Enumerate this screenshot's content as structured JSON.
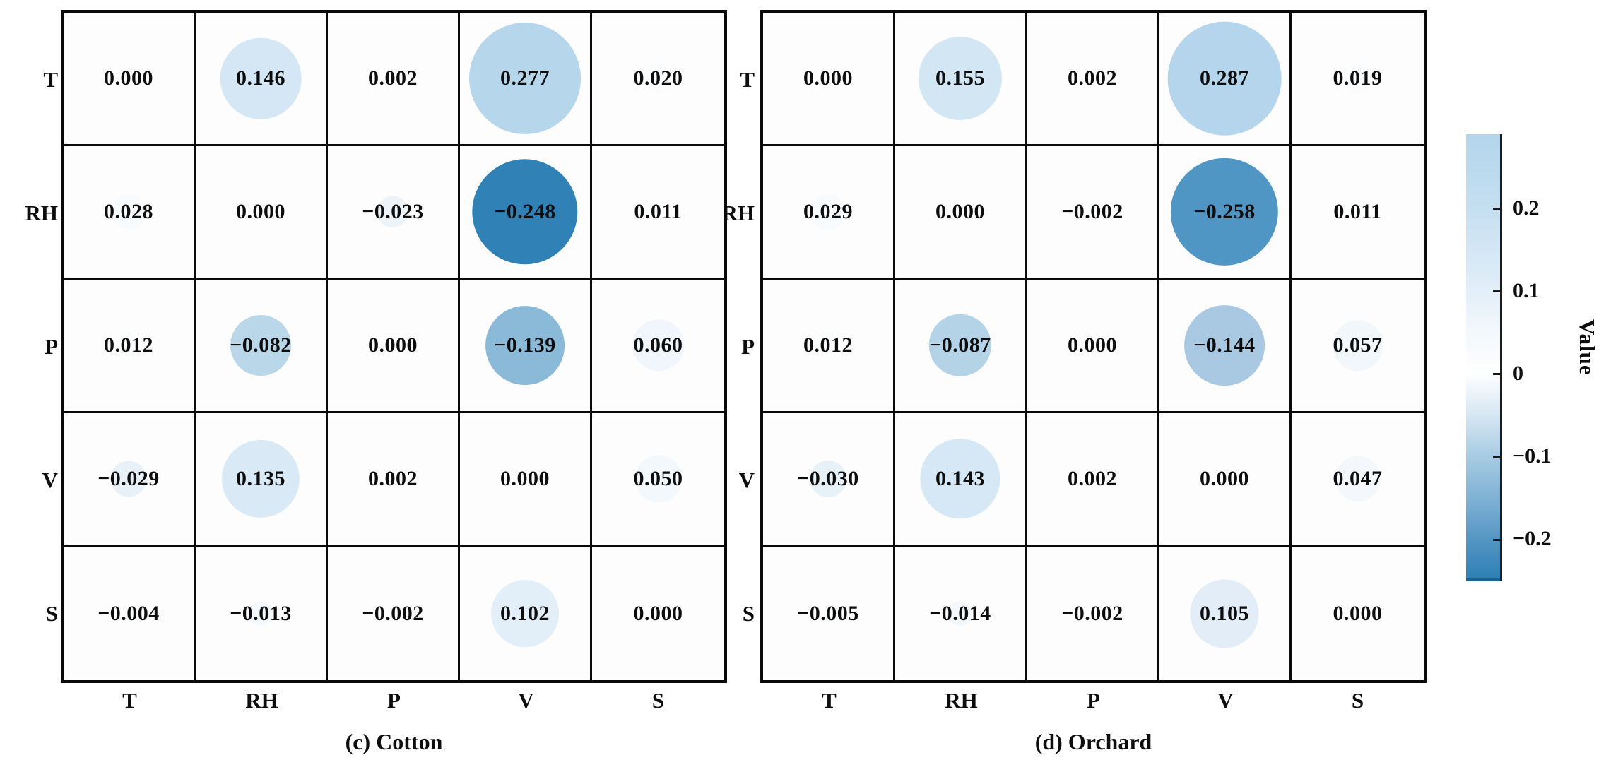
{
  "figure": {
    "panels": [
      {
        "id": "cotton",
        "caption": "(c) Cotton",
        "row_labels": [
          "T",
          "RH",
          "P",
          "V",
          "S"
        ],
        "col_labels": [
          "T",
          "RH",
          "P",
          "V",
          "S"
        ],
        "values": [
          [
            "0.000",
            "0.146",
            "0.002",
            "0.277",
            "0.020"
          ],
          [
            "0.028",
            "0.000",
            "−0.023",
            "−0.248",
            "0.011"
          ],
          [
            "0.012",
            "−0.082",
            "0.000",
            "−0.139",
            "0.060"
          ],
          [
            "−0.029",
            "0.135",
            "0.002",
            "0.000",
            "0.050"
          ],
          [
            "−0.004",
            "−0.013",
            "−0.002",
            "0.102",
            "0.000"
          ]
        ],
        "circle_color_overrides": {}
      },
      {
        "id": "orchard",
        "caption": "(d) Orchard",
        "row_labels": [
          "T",
          "RH",
          "P",
          "V",
          "S"
        ],
        "col_labels": [
          "T",
          "RH",
          "P",
          "V",
          "S"
        ],
        "values": [
          [
            "0.000",
            "0.155",
            "0.002",
            "0.287",
            "0.019"
          ],
          [
            "0.029",
            "0.000",
            "−0.002",
            "−0.258",
            "0.011"
          ],
          [
            "0.012",
            "−0.087",
            "0.000",
            "−0.144",
            "0.057"
          ],
          [
            "−0.030",
            "0.143",
            "0.002",
            "0.000",
            "0.047"
          ],
          [
            "−0.005",
            "−0.014",
            "−0.002",
            "0.105",
            "0.000"
          ]
        ],
        "circle_color_overrides": {
          "1,3": "#4f96c5",
          "2,3": "#a9c9e2"
        }
      }
    ],
    "colormap_stops": [
      {
        "t": -0.29,
        "color": "#1f72a9"
      },
      {
        "t": -0.25,
        "color": "#2e80b4"
      },
      {
        "t": -0.2,
        "color": "#5797c4"
      },
      {
        "t": -0.15,
        "color": "#82b3d5"
      },
      {
        "t": -0.1,
        "color": "#a9cce3"
      },
      {
        "t": -0.05,
        "color": "#d7e7f3"
      },
      {
        "t": 0.0,
        "color": "#ffffff"
      },
      {
        "t": 0.05,
        "color": "#f3f8fc"
      },
      {
        "t": 0.1,
        "color": "#e3eef8"
      },
      {
        "t": 0.2,
        "color": "#c5dff1"
      },
      {
        "t": 0.29,
        "color": "#b3d5eb"
      }
    ],
    "colorbar": {
      "label": "Value",
      "domain_top": 0.29,
      "domain_bottom": -0.25,
      "ticks": [
        {
          "label": "0.2",
          "value": 0.2
        },
        {
          "label": "0.1",
          "value": 0.1
        },
        {
          "label": "0",
          "value": 0.0
        },
        {
          "label": "−0.1",
          "value": -0.1
        },
        {
          "label": "−0.2",
          "value": -0.2
        }
      ]
    }
  },
  "chart_data": [
    {
      "type": "heatmap",
      "title": "(c) Cotton",
      "rows": [
        "T",
        "RH",
        "P",
        "V",
        "S"
      ],
      "columns": [
        "T",
        "RH",
        "P",
        "V",
        "S"
      ],
      "values": [
        [
          0.0,
          0.146,
          0.002,
          0.277,
          0.02
        ],
        [
          0.028,
          0.0,
          -0.023,
          -0.248,
          0.011
        ],
        [
          0.012,
          -0.082,
          0.0,
          -0.139,
          0.06
        ],
        [
          -0.029,
          0.135,
          0.002,
          0.0,
          0.05
        ],
        [
          -0.004,
          -0.013,
          -0.002,
          0.102,
          0.0
        ]
      ],
      "encoding": "bubble size proportional to |value|; bubble color from blue colorbar",
      "legend": {
        "label": "Value",
        "ticks": [
          0.2,
          0.1,
          0,
          -0.1,
          -0.2
        ],
        "position": "right"
      }
    },
    {
      "type": "heatmap",
      "title": "(d) Orchard",
      "rows": [
        "T",
        "RH",
        "P",
        "V",
        "S"
      ],
      "columns": [
        "T",
        "RH",
        "P",
        "V",
        "S"
      ],
      "values": [
        [
          0.0,
          0.155,
          0.002,
          0.287,
          0.019
        ],
        [
          0.029,
          0.0,
          -0.002,
          -0.258,
          0.011
        ],
        [
          0.012,
          -0.087,
          0.0,
          -0.144,
          0.057
        ],
        [
          -0.03,
          0.143,
          0.002,
          0.0,
          0.047
        ],
        [
          -0.005,
          -0.014,
          -0.002,
          0.105,
          0.0
        ]
      ],
      "encoding": "bubble size proportional to |value|; bubble color from blue colorbar",
      "legend": {
        "label": "Value",
        "ticks": [
          0.2,
          0.1,
          0,
          -0.1,
          -0.2
        ],
        "position": "right"
      }
    }
  ]
}
